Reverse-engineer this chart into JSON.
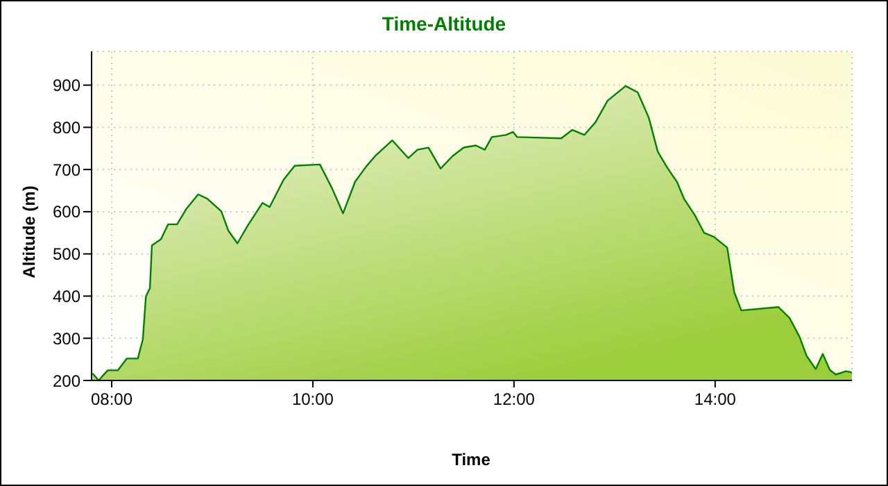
{
  "chart_data": {
    "type": "area",
    "title": "Time-Altitude",
    "xlabel": "Time",
    "ylabel": "Altitude (m)",
    "grid": true,
    "x": [
      7.81,
      7.87,
      7.96,
      8.06,
      8.15,
      8.26,
      8.31,
      8.34,
      8.38,
      8.4,
      8.49,
      8.56,
      8.65,
      8.74,
      8.86,
      8.95,
      9.09,
      9.16,
      9.25,
      9.36,
      9.5,
      9.57,
      9.71,
      9.82,
      10.07,
      10.19,
      10.3,
      10.42,
      10.53,
      10.62,
      10.79,
      10.95,
      11.04,
      11.15,
      11.27,
      11.39,
      11.5,
      11.62,
      11.71,
      11.78,
      11.92,
      11.99,
      12.03,
      12.47,
      12.58,
      12.7,
      12.81,
      12.93,
      13.11,
      13.23,
      13.34,
      13.43,
      13.53,
      13.62,
      13.69,
      13.8,
      13.89,
      13.99,
      14.12,
      14.19,
      14.26,
      14.63,
      14.74,
      14.84,
      14.91,
      15.0,
      15.07,
      15.14,
      15.2,
      15.3,
      15.36
    ],
    "series": [
      {
        "color": "#008000",
        "values": [
          217,
          200,
          224,
          224,
          252,
          252,
          298,
          399,
          419,
          520,
          535,
          570,
          570,
          606,
          641,
          631,
          601,
          555,
          525,
          570,
          621,
          611,
          676,
          709,
          712,
          656,
          596,
          671,
          707,
          732,
          769,
          727,
          747,
          752,
          702,
          732,
          752,
          757,
          747,
          777,
          782,
          789,
          777,
          774,
          794,
          782,
          812,
          863,
          898,
          883,
          823,
          742,
          702,
          671,
          631,
          591,
          550,
          540,
          515,
          409,
          366,
          374,
          348,
          303,
          258,
          227,
          263,
          225,
          214,
          222,
          219
        ]
      }
    ],
    "xlim": [
      7.8,
      15.36
    ],
    "xticks": [
      {
        "value": 8,
        "label": "08:00"
      },
      {
        "value": 10,
        "label": "10:00"
      },
      {
        "value": 12,
        "label": "12:00"
      },
      {
        "value": 14,
        "label": "14:00"
      }
    ],
    "ylim": [
      200,
      980
    ],
    "yticks": [
      200,
      300,
      400,
      500,
      600,
      700,
      800,
      900
    ]
  }
}
